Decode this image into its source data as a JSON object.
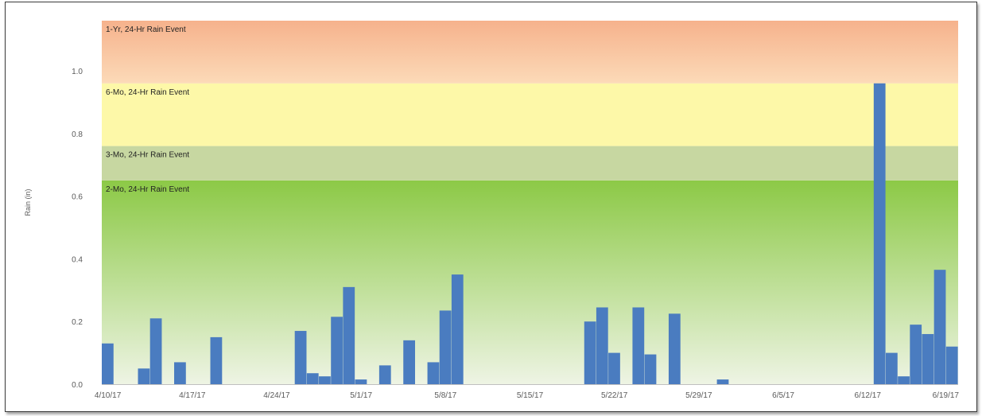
{
  "chart_data": {
    "type": "bar",
    "title": "",
    "xlabel": "",
    "ylabel": "Rain (in)",
    "ylim": [
      0,
      1.16
    ],
    "y_ticks": [
      "0.0",
      "0.2",
      "0.4",
      "0.6",
      "0.8",
      "1.0"
    ],
    "y_tick_values": [
      0,
      0.2,
      0.4,
      0.6,
      0.8,
      1.0
    ],
    "x_start_date": "2017-04-10",
    "x_end_date": "2017-06-19",
    "x_ticks": [
      {
        "label": "4/10/17",
        "date": "2017-04-10"
      },
      {
        "label": "4/17/17",
        "date": "2017-04-17"
      },
      {
        "label": "4/24/17",
        "date": "2017-04-24"
      },
      {
        "label": "5/1/17",
        "date": "2017-05-01"
      },
      {
        "label": "5/8/17",
        "date": "2017-05-08"
      },
      {
        "label": "5/15/17",
        "date": "2017-05-15"
      },
      {
        "label": "5/22/17",
        "date": "2017-05-22"
      },
      {
        "label": "5/29/17",
        "date": "2017-05-29"
      },
      {
        "label": "6/5/17",
        "date": "2017-06-05"
      },
      {
        "label": "6/12/17",
        "date": "2017-06-12"
      },
      {
        "label": "6/19/17",
        "date": "2017-06-19"
      }
    ],
    "bars": [
      {
        "date": "2017-04-10",
        "value": 0.13
      },
      {
        "date": "2017-04-13",
        "value": 0.05
      },
      {
        "date": "2017-04-14",
        "value": 0.21
      },
      {
        "date": "2017-04-16",
        "value": 0.07
      },
      {
        "date": "2017-04-19",
        "value": 0.15
      },
      {
        "date": "2017-04-26",
        "value": 0.17
      },
      {
        "date": "2017-04-27",
        "value": 0.035
      },
      {
        "date": "2017-04-28",
        "value": 0.025
      },
      {
        "date": "2017-04-29",
        "value": 0.215
      },
      {
        "date": "2017-04-30",
        "value": 0.31
      },
      {
        "date": "2017-05-01",
        "value": 0.015
      },
      {
        "date": "2017-05-03",
        "value": 0.06
      },
      {
        "date": "2017-05-05",
        "value": 0.14
      },
      {
        "date": "2017-05-07",
        "value": 0.07
      },
      {
        "date": "2017-05-08",
        "value": 0.235
      },
      {
        "date": "2017-05-09",
        "value": 0.35
      },
      {
        "date": "2017-05-20",
        "value": 0.2
      },
      {
        "date": "2017-05-21",
        "value": 0.245
      },
      {
        "date": "2017-05-22",
        "value": 0.1
      },
      {
        "date": "2017-05-24",
        "value": 0.245
      },
      {
        "date": "2017-05-25",
        "value": 0.095
      },
      {
        "date": "2017-05-27",
        "value": 0.225
      },
      {
        "date": "2017-05-31",
        "value": 0.015
      },
      {
        "date": "2017-06-13",
        "value": 0.96
      },
      {
        "date": "2017-06-14",
        "value": 0.1
      },
      {
        "date": "2017-06-15",
        "value": 0.025
      },
      {
        "date": "2017-06-16",
        "value": 0.19
      },
      {
        "date": "2017-06-17",
        "value": 0.16
      },
      {
        "date": "2017-06-18",
        "value": 0.365
      },
      {
        "date": "2017-06-19",
        "value": 0.12
      }
    ],
    "bar_color": "#4a7cc0",
    "bands": [
      {
        "label": "2-Mo, 24-Hr Rain Event",
        "from": 0,
        "to": 0.65,
        "color_top": "#8cc946",
        "color_bottom": "#eef4e4"
      },
      {
        "label": "3-Mo, 24-Hr Rain Event",
        "from": 0.65,
        "to": 0.76,
        "color_top": "#c7d7a1",
        "color_bottom": "#c7d7a1"
      },
      {
        "label": "6-Mo, 24-Hr Rain Event",
        "from": 0.76,
        "to": 0.96,
        "color_top": "#fdf8a8",
        "color_bottom": "#fdf8a8"
      },
      {
        "label": "1-Yr, 24-Hr Rain Event",
        "from": 0.96,
        "to": 1.16,
        "color_top": "#f6b28c",
        "color_bottom": "#fcdab8"
      }
    ],
    "grid": false,
    "legend": "none"
  }
}
